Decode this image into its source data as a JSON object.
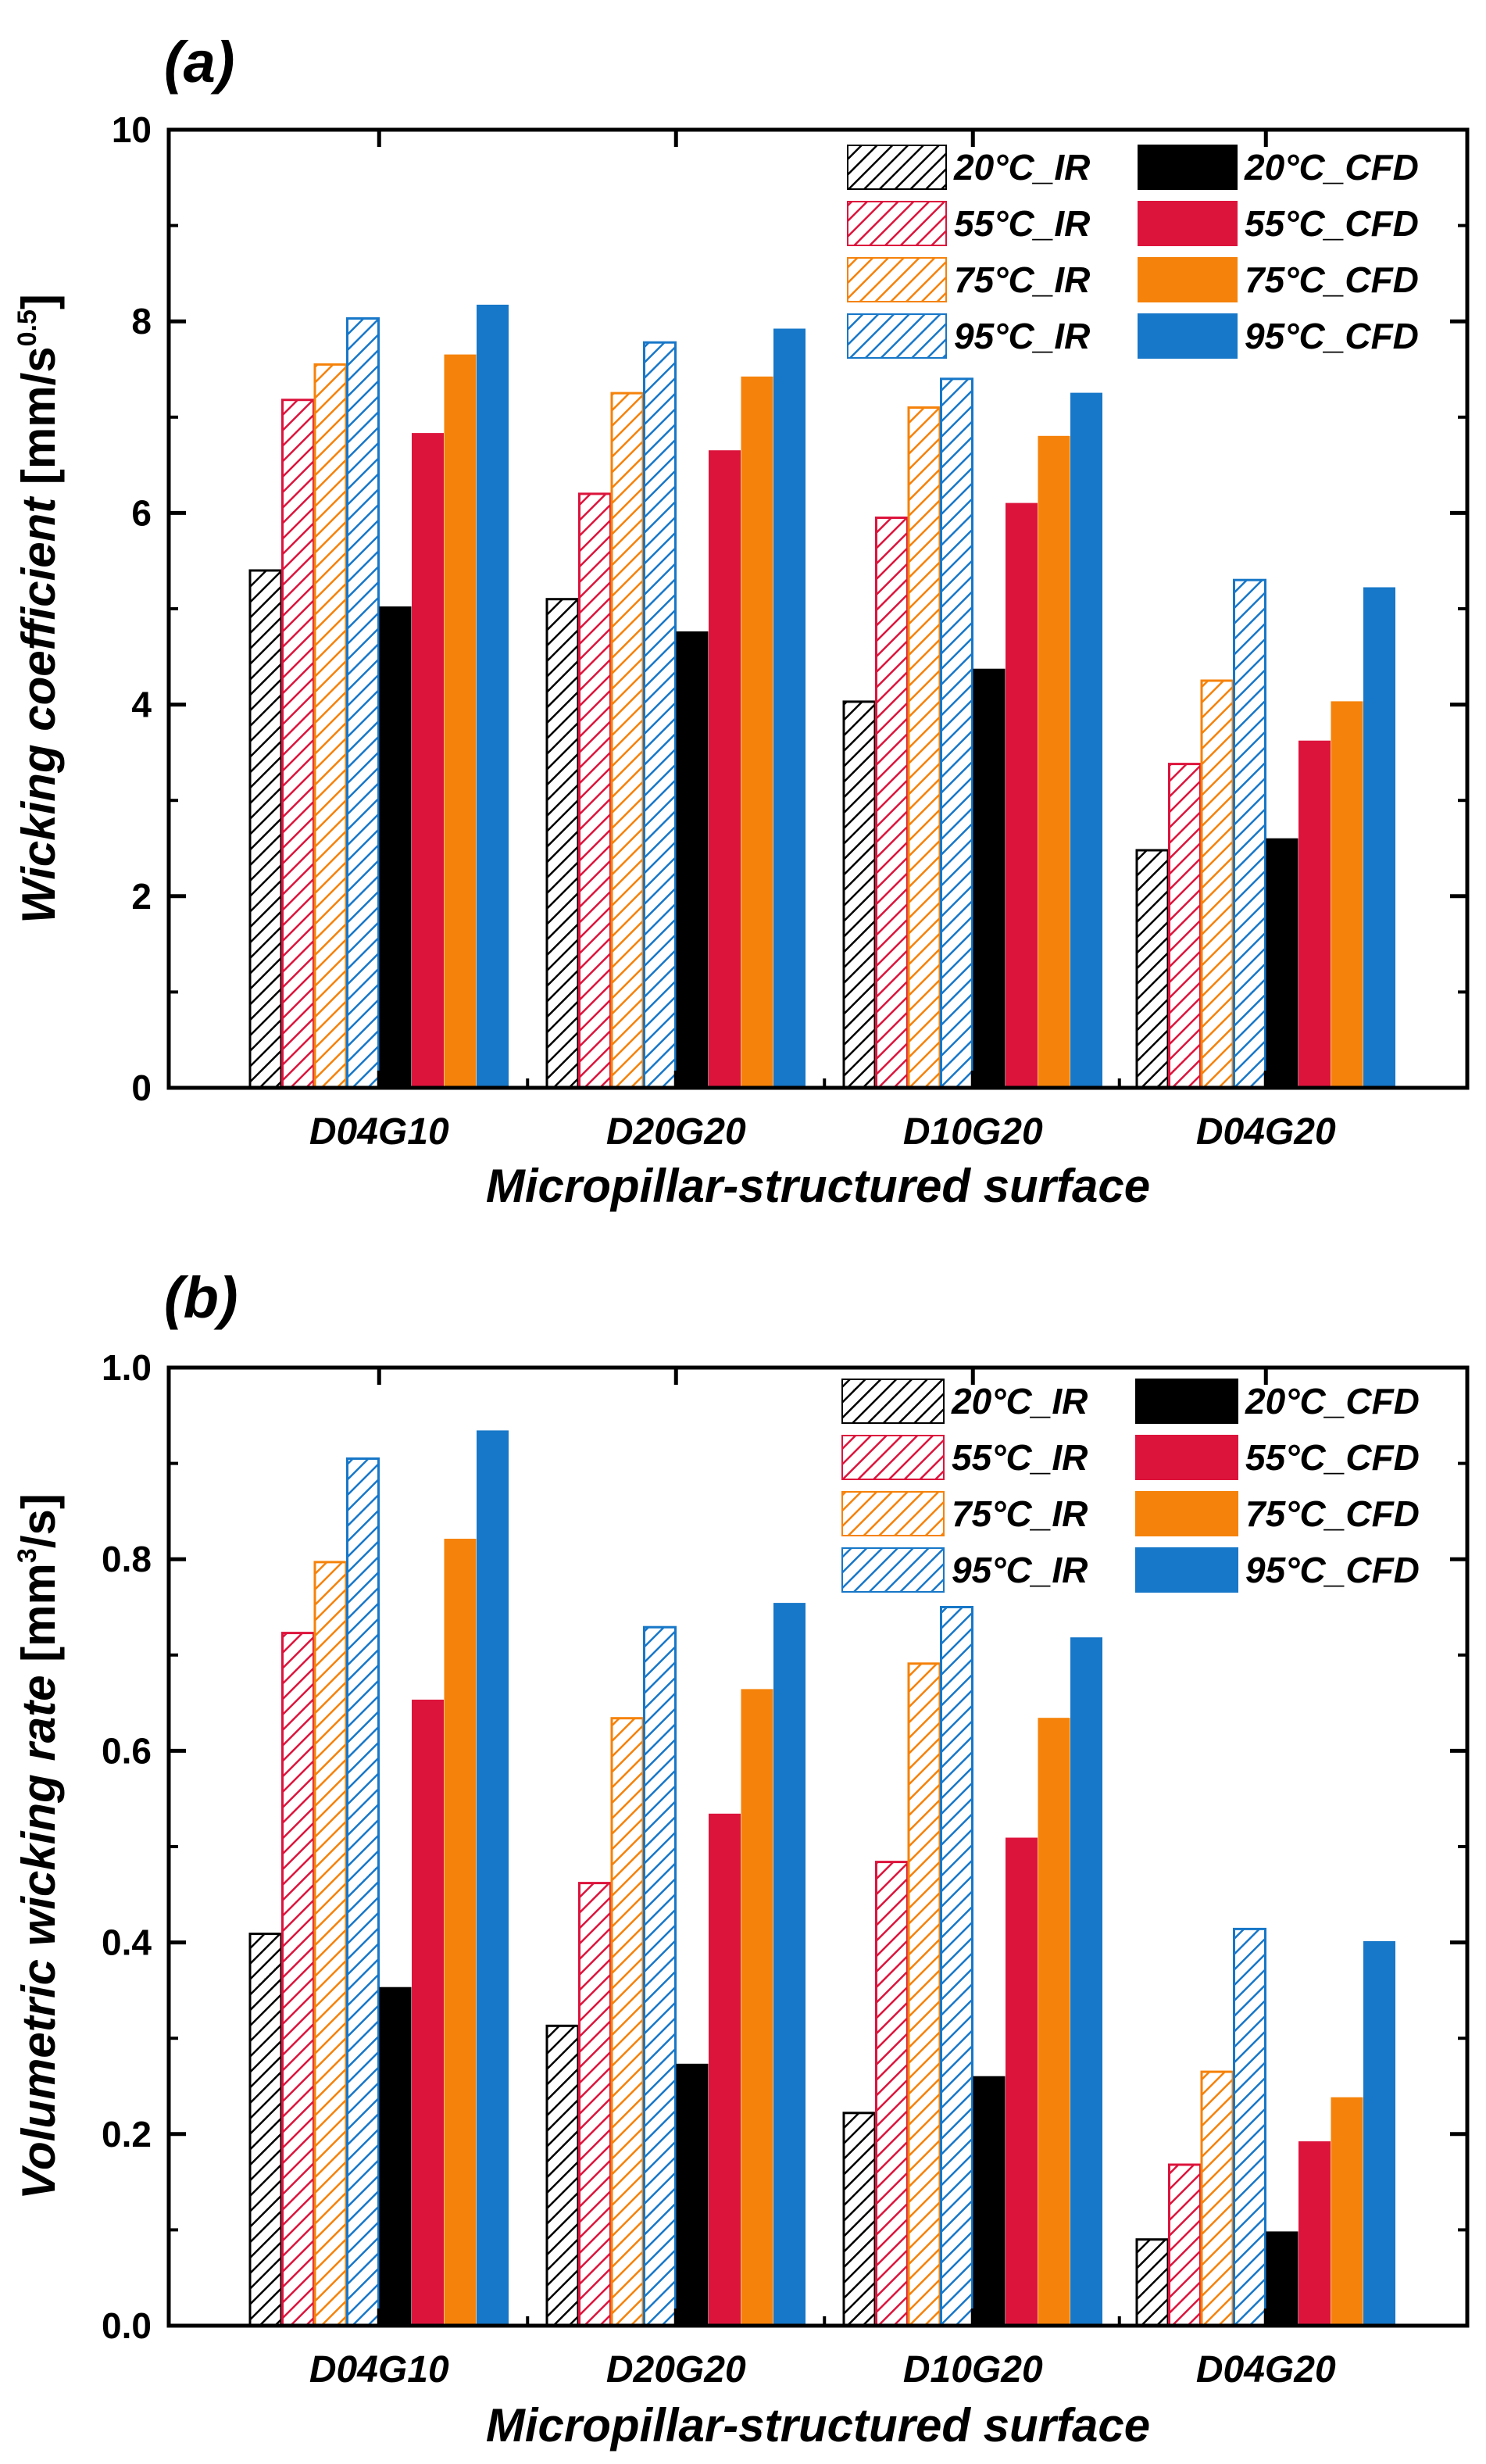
{
  "chart_data": [
    {
      "panel_label": "(a)",
      "type": "bar",
      "xlabel": "Micropillar-structured surface",
      "ylabel_main": "Wicking coefficient",
      "ylabel_unit_pre": " [mm/s",
      "ylabel_unit_sup": "0.5",
      "ylabel_unit_post": "]",
      "ylim": [
        0,
        10
      ],
      "yticks": [
        0,
        2,
        4,
        6,
        8,
        10
      ],
      "ytick_labels": [
        "0",
        "2",
        "4",
        "6",
        "8",
        "10"
      ],
      "categories": [
        "D04G10",
        "D20G20",
        "D10G20",
        "D04G20"
      ],
      "series": [
        {
          "name": "20°C_IR",
          "pattern": "hatched",
          "color": "#000000",
          "values": [
            5.4,
            5.1,
            4.03,
            2.48
          ]
        },
        {
          "name": "55°C_IR",
          "pattern": "hatched",
          "color": "#dc143c",
          "values": [
            7.18,
            6.2,
            5.95,
            3.38
          ]
        },
        {
          "name": "75°C_IR",
          "pattern": "hatched",
          "color": "#f5820a",
          "values": [
            7.55,
            7.25,
            7.1,
            4.25
          ]
        },
        {
          "name": "95°C_IR",
          "pattern": "hatched",
          "color": "#1777c8",
          "values": [
            8.03,
            7.78,
            7.4,
            5.3
          ]
        },
        {
          "name": "20°C_CFD",
          "pattern": "solid",
          "color": "#000000",
          "values": [
            5.02,
            4.76,
            4.37,
            2.6
          ]
        },
        {
          "name": "55°C_CFD",
          "pattern": "solid",
          "color": "#dc143c",
          "values": [
            6.83,
            6.65,
            6.1,
            3.62
          ]
        },
        {
          "name": "75°C_CFD",
          "pattern": "solid",
          "color": "#f5820a",
          "values": [
            7.65,
            7.42,
            6.8,
            4.03
          ]
        },
        {
          "name": "95°C_CFD",
          "pattern": "solid",
          "color": "#1777c8",
          "values": [
            8.17,
            7.92,
            7.25,
            5.22
          ]
        }
      ],
      "legend_position": "top-right"
    },
    {
      "panel_label": "(b)",
      "type": "bar",
      "xlabel": "Micropillar-structured surface",
      "ylabel_main": "Volumetric wicking rate",
      "ylabel_unit_pre": " [mm",
      "ylabel_unit_sup": "3",
      "ylabel_unit_post": "/s]",
      "ylim": [
        0,
        1.0
      ],
      "yticks": [
        0,
        0.2,
        0.4,
        0.6,
        0.8,
        1.0
      ],
      "ytick_labels": [
        "0.0",
        "0.2",
        "0.4",
        "0.6",
        "0.8",
        "1.0"
      ],
      "categories": [
        "D04G10",
        "D20G20",
        "D10G20",
        "D04G20"
      ],
      "series": [
        {
          "name": "20°C_IR",
          "pattern": "hatched",
          "color": "#000000",
          "values": [
            0.409,
            0.313,
            0.222,
            0.09
          ]
        },
        {
          "name": "55°C_IR",
          "pattern": "hatched",
          "color": "#dc143c",
          "values": [
            0.723,
            0.462,
            0.484,
            0.168
          ]
        },
        {
          "name": "75°C_IR",
          "pattern": "hatched",
          "color": "#f5820a",
          "values": [
            0.797,
            0.634,
            0.691,
            0.265
          ]
        },
        {
          "name": "95°C_IR",
          "pattern": "hatched",
          "color": "#1777c8",
          "values": [
            0.905,
            0.729,
            0.75,
            0.414
          ]
        },
        {
          "name": "20°C_CFD",
          "pattern": "solid",
          "color": "#000000",
          "values": [
            0.353,
            0.273,
            0.26,
            0.098
          ]
        },
        {
          "name": "55°C_CFD",
          "pattern": "solid",
          "color": "#dc143c",
          "values": [
            0.653,
            0.534,
            0.509,
            0.192
          ]
        },
        {
          "name": "75°C_CFD",
          "pattern": "solid",
          "color": "#f5820a",
          "values": [
            0.821,
            0.664,
            0.634,
            0.238
          ]
        },
        {
          "name": "95°C_CFD",
          "pattern": "solid",
          "color": "#1777c8",
          "values": [
            0.934,
            0.754,
            0.718,
            0.401
          ]
        }
      ],
      "legend_position": "top-right"
    }
  ]
}
